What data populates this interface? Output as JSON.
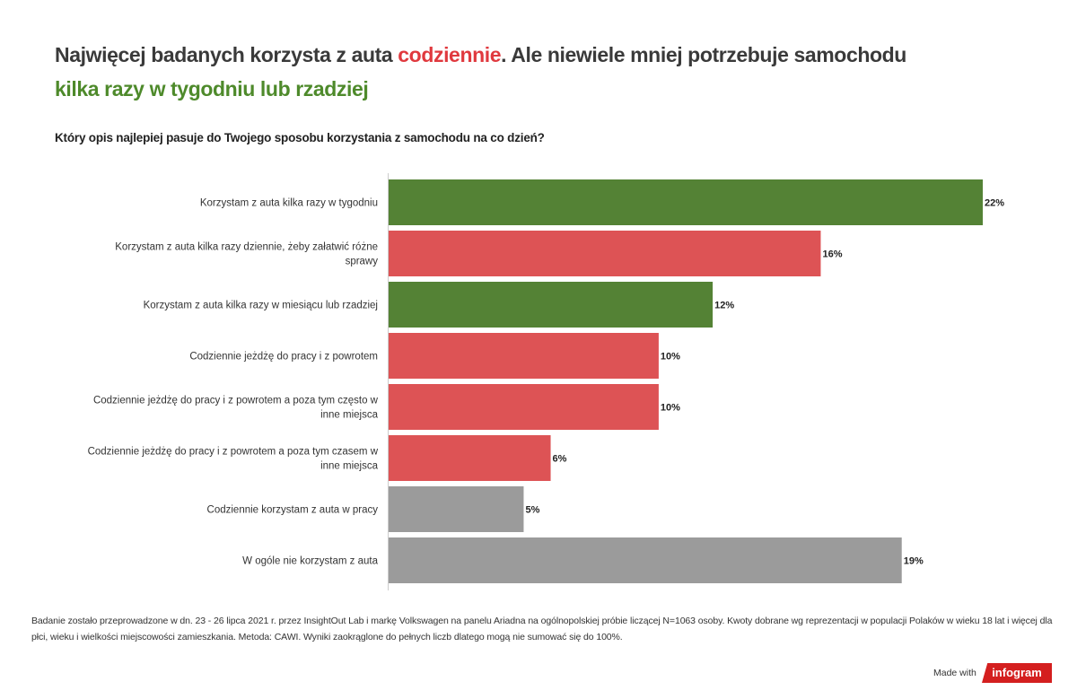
{
  "title": {
    "part1": "Najwięcej badanych korzysta z auta ",
    "highlight_red": "codziennie",
    "part2": ". Ale niewiele mniej potrzebuje samochodu ",
    "highlight_green": "kilka razy w tygodniu lub rzadziej"
  },
  "colors": {
    "green": "#548235",
    "red": "#dd5355",
    "gray": "#9b9b9b",
    "title_red": "#e0393e",
    "title_green": "#4e8a2b"
  },
  "chart_data": {
    "type": "bar",
    "orientation": "horizontal",
    "title": "Który opis najlepiej pasuje do Twojego sposobu korzystania z samochodu na co dzień?",
    "categories": [
      "Korzystam z auta kilka razy w tygodniu",
      "Korzystam z auta kilka razy dziennie, żeby załatwić różne sprawy",
      "Korzystam z auta kilka razy w miesiącu lub rzadziej",
      "Codziennie jeżdżę do pracy i z powrotem",
      "Codziennie jeżdżę do pracy i z powrotem a poza tym często w inne miejsca",
      "Codziennie jeżdżę do pracy i z powrotem a poza tym czasem w inne miejsca",
      "Codziennie korzystam z auta w pracy",
      "W ogóle nie korzystam z auta"
    ],
    "values": [
      22,
      16,
      12,
      10,
      10,
      6,
      5,
      19
    ],
    "data_labels": [
      "22%",
      "16%",
      "12%",
      "10%",
      "10%",
      "6%",
      "5%",
      "19%"
    ],
    "bar_colors": [
      "green",
      "red",
      "green",
      "red",
      "red",
      "red",
      "gray",
      "gray"
    ],
    "unit": "%",
    "xlim": [
      0,
      22
    ],
    "grid": false
  },
  "footnote": "Badanie zostało przeprowadzone w dn. 23 - 26 lipca 2021 r. przez InsightOut Lab i markę Volkswagen na panelu Ariadna na ogólnopolskiej próbie liczącej N=1063 osoby. Kwoty dobrane wg reprezentacji w populacji Polaków w wieku 18 lat i więcej dla płci, wieku i wielkości miejscowości zamieszkania. Metoda: CAWI. Wyniki zaokrąglone do pełnych liczb dlatego mogą nie sumować się do 100%.",
  "branding": {
    "made_with": "Made with",
    "logo": "infogram"
  }
}
